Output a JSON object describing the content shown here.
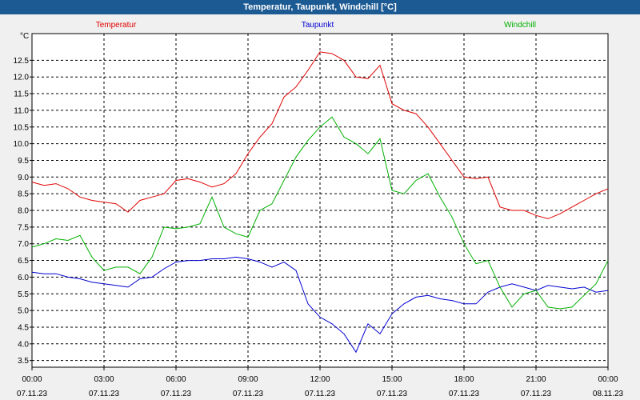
{
  "window": {
    "title": "Temperatur, Taupunkt, Windchill [°C]"
  },
  "chart_data": {
    "type": "line",
    "title": "Temperatur, Taupunkt, Windchill [°C]",
    "ylabel": "°C",
    "ylim": [
      3.3,
      13.3
    ],
    "xlim_hours": [
      0,
      24
    ],
    "grid": true,
    "legend_placement": "top",
    "y_ticks": [
      "3.5",
      "4.0",
      "4.5",
      "5.0",
      "5.5",
      "6.0",
      "6.5",
      "7.0",
      "7.5",
      "8.0",
      "8.5",
      "9.0",
      "9.5",
      "10.0",
      "10.5",
      "11.0",
      "11.5",
      "12.0",
      "12.5"
    ],
    "x_ticks": [
      {
        "time": "00:00",
        "date": "07.11.23"
      },
      {
        "time": "03:00",
        "date": "07.11.23"
      },
      {
        "time": "06:00",
        "date": "07.11.23"
      },
      {
        "time": "09:00",
        "date": "07.11.23"
      },
      {
        "time": "12:00",
        "date": "07.11.23"
      },
      {
        "time": "15:00",
        "date": "07.11.23"
      },
      {
        "time": "18:00",
        "date": "07.11.23"
      },
      {
        "time": "21:00",
        "date": "07.11.23"
      },
      {
        "time": "00:00",
        "date": "08.11.23"
      }
    ],
    "series": [
      {
        "name": "Temperatur",
        "color": "#e00000",
        "x": [
          0,
          0.5,
          1,
          1.5,
          2,
          2.5,
          3,
          3.5,
          4,
          4.5,
          5,
          5.5,
          6,
          6.5,
          7,
          7.5,
          8,
          8.5,
          9,
          9.5,
          10,
          10.5,
          11,
          11.5,
          12,
          12.5,
          13,
          13.5,
          14,
          14.5,
          15,
          15.5,
          16,
          16.5,
          17,
          17.5,
          18,
          18.5,
          19,
          19.5,
          20,
          20.5,
          21,
          21.5,
          22,
          22.5,
          23,
          23.5,
          24
        ],
        "values": [
          8.85,
          8.75,
          8.8,
          8.65,
          8.4,
          8.3,
          8.25,
          8.2,
          7.95,
          8.3,
          8.4,
          8.5,
          8.9,
          8.95,
          8.85,
          8.7,
          8.8,
          9.1,
          9.7,
          10.2,
          10.6,
          11.4,
          11.7,
          12.2,
          12.75,
          12.7,
          12.5,
          12.0,
          11.95,
          12.35,
          11.2,
          11.0,
          10.9,
          10.5,
          10.0,
          9.5,
          9.0,
          8.95,
          9.0,
          8.1,
          8.0,
          8.0,
          7.85,
          7.75,
          7.9,
          8.1,
          8.3,
          8.5,
          8.65
        ]
      },
      {
        "name": "Taupunkt",
        "color": "#0000d0",
        "x": [
          0,
          0.5,
          1,
          1.5,
          2,
          2.5,
          3,
          3.5,
          4,
          4.5,
          5,
          5.5,
          6,
          6.5,
          7,
          7.5,
          8,
          8.5,
          9,
          9.5,
          10,
          10.5,
          11,
          11.5,
          12,
          12.5,
          13,
          13.5,
          14,
          14.5,
          15,
          15.5,
          16,
          16.5,
          17,
          17.5,
          18,
          18.5,
          19,
          19.5,
          20,
          20.5,
          21,
          21.5,
          22,
          22.5,
          23,
          23.5,
          24
        ],
        "values": [
          6.15,
          6.1,
          6.1,
          6.0,
          5.95,
          5.85,
          5.8,
          5.75,
          5.7,
          5.95,
          6.0,
          6.25,
          6.45,
          6.5,
          6.5,
          6.55,
          6.55,
          6.6,
          6.55,
          6.45,
          6.3,
          6.45,
          6.2,
          5.2,
          4.8,
          4.6,
          4.3,
          3.75,
          4.6,
          4.3,
          4.9,
          5.2,
          5.4,
          5.45,
          5.35,
          5.3,
          5.2,
          5.2,
          5.55,
          5.7,
          5.8,
          5.7,
          5.6,
          5.75,
          5.7,
          5.65,
          5.7,
          5.55,
          5.6
        ]
      },
      {
        "name": "Windchill",
        "color": "#00b000",
        "x": [
          0,
          0.5,
          1,
          1.5,
          2,
          2.5,
          3,
          3.5,
          4,
          4.5,
          5,
          5.5,
          6,
          6.5,
          7,
          7.5,
          8,
          8.5,
          9,
          9.5,
          10,
          10.5,
          11,
          11.5,
          12,
          12.5,
          13,
          13.5,
          14,
          14.5,
          15,
          15.5,
          16,
          16.5,
          17,
          17.5,
          18,
          18.5,
          19,
          19.5,
          20,
          20.5,
          21,
          21.5,
          22,
          22.5,
          23,
          23.5,
          24
        ],
        "values": [
          6.9,
          7.0,
          7.15,
          7.1,
          7.25,
          6.6,
          6.2,
          6.3,
          6.3,
          6.1,
          6.6,
          7.5,
          7.45,
          7.5,
          7.6,
          8.4,
          7.5,
          7.3,
          7.2,
          8.0,
          8.2,
          8.9,
          9.6,
          10.1,
          10.5,
          10.8,
          10.2,
          10.0,
          9.7,
          10.15,
          8.6,
          8.5,
          8.9,
          9.1,
          8.4,
          7.8,
          7.0,
          6.4,
          6.5,
          5.7,
          5.1,
          5.5,
          5.6,
          5.1,
          5.05,
          5.1,
          5.45,
          5.8,
          6.5
        ]
      }
    ]
  }
}
